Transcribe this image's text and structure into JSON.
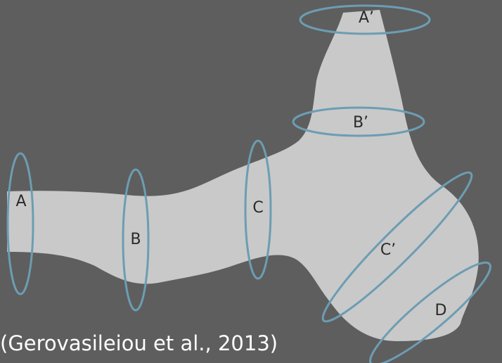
{
  "sections": [
    {
      "label": "A"
    },
    {
      "label": "B"
    },
    {
      "label": "C"
    },
    {
      "label": "A’"
    },
    {
      "label": "B’"
    },
    {
      "label": "C’"
    },
    {
      "label": "D"
    }
  ],
  "citation": "(Gerovasileiou et al., 2013)"
}
